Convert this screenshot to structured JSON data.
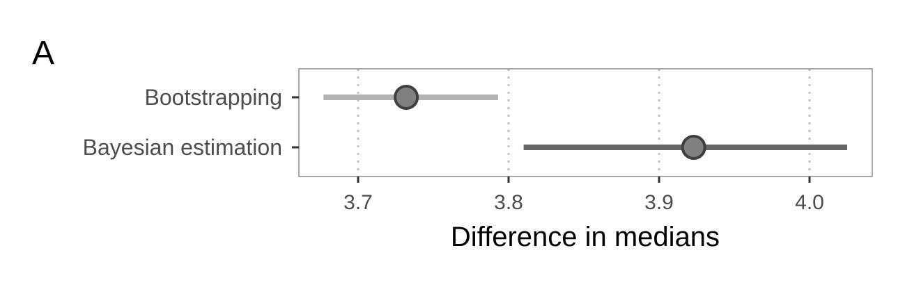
{
  "panel_label": "A",
  "chart_data": {
    "type": "interval",
    "title": "",
    "xlabel": "Difference in medians",
    "ylabel": "",
    "xlim": [
      3.66,
      4.04
    ],
    "x_ticks": [
      3.7,
      3.8,
      3.9,
      4.0
    ],
    "x_tick_labels": [
      "3.7",
      "3.8",
      "3.9",
      "4.0"
    ],
    "grid": "vertical dotted at major ticks",
    "legend": "none",
    "categories": [
      "Bootstrapping",
      "Bayesian estimation"
    ],
    "series": [
      {
        "category": "Bootstrapping",
        "estimate": 3.732,
        "lower": 3.677,
        "upper": 3.793,
        "line_color": "#b3b3b3"
      },
      {
        "category": "Bayesian estimation",
        "estimate": 3.923,
        "lower": 3.81,
        "upper": 4.025,
        "line_color": "#666666"
      }
    ],
    "point_fill": "#808080",
    "point_stroke": "#404040",
    "grid_color": "#bfbfbf",
    "frame_color": "#8c8c8c"
  }
}
